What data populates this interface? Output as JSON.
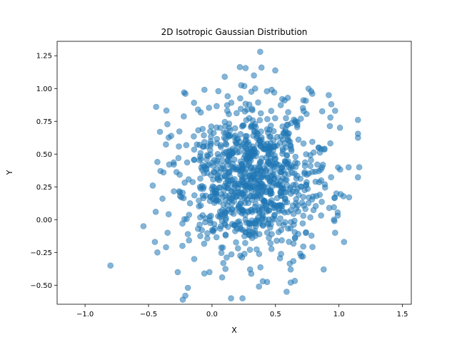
{
  "chart_data": {
    "type": "scatter",
    "title": "2D Isotropic Gaussian Distribution",
    "xlabel": "X",
    "ylabel": "Y",
    "xlim": [
      -1.22,
      1.57
    ],
    "ylim": [
      -0.645,
      1.36
    ],
    "xticks": [
      -1.0,
      -0.5,
      0.0,
      0.5,
      1.0,
      1.5
    ],
    "xtick_labels": [
      "−1.0",
      "−0.5",
      "0.0",
      "0.5",
      "1.0",
      "1.5"
    ],
    "yticks": [
      -0.5,
      -0.25,
      0.0,
      0.25,
      0.5,
      0.75,
      1.0,
      1.25
    ],
    "ytick_labels": [
      "−0.50",
      "−0.25",
      "0.00",
      "0.25",
      "0.50",
      "0.75",
      "1.00",
      "1.25"
    ],
    "grid": false,
    "legend": "none",
    "marker_color": "#1f77b4",
    "marker_alpha": 0.55,
    "distribution": {
      "center": [
        0.32,
        0.31
      ],
      "std": [
        0.29,
        0.29
      ],
      "count": 1000
    },
    "points": [
      [
        -0.8,
        -0.35
      ],
      [
        -0.54,
        -0.05
      ],
      [
        -0.44,
        0.86
      ],
      [
        -0.41,
        0.67
      ],
      [
        -0.22,
        0.97
      ],
      [
        -0.21,
        0.96
      ],
      [
        0.05,
        0.98
      ],
      [
        0.1,
        1.09
      ],
      [
        0.33,
        1.1
      ],
      [
        0.38,
        1.28
      ],
      [
        0.39,
        1.16
      ],
      [
        0.47,
        0.99
      ],
      [
        0.49,
        0.97
      ],
      [
        0.34,
        1.0
      ],
      [
        0.79,
        0.96
      ],
      [
        0.92,
        0.95
      ],
      [
        0.94,
        0.88
      ],
      [
        1.16,
        0.4
      ],
      [
        1.08,
        0.17
      ],
      [
        1.04,
        -0.17
      ],
      [
        0.88,
        -0.38
      ],
      [
        0.62,
        -0.48
      ],
      [
        0.37,
        -0.51
      ],
      [
        0.4,
        -0.47
      ],
      [
        0.24,
        -0.6
      ],
      [
        0.15,
        -0.6
      ],
      [
        0.08,
        -0.44
      ],
      [
        -0.02,
        -0.4
      ],
      [
        -0.06,
        -0.41
      ],
      [
        -0.19,
        -0.52
      ],
      [
        -0.21,
        -0.58
      ],
      [
        -0.23,
        -0.61
      ],
      [
        -0.27,
        -0.4
      ],
      [
        -0.45,
        -0.17
      ],
      [
        -0.43,
        -0.25
      ],
      [
        -0.39,
        0.16
      ],
      [
        -0.43,
        0.44
      ],
      [
        -0.11,
        0.84
      ],
      [
        0.72,
        0.91
      ],
      [
        0.97,
        0.83
      ],
      [
        0.97,
        -0.1
      ],
      [
        0.96,
        0.0
      ],
      [
        0.98,
        0.2
      ],
      [
        0.84,
        0.55
      ],
      [
        0.62,
        -0.38
      ],
      [
        0.3,
        -0.38
      ],
      [
        -0.14,
        -0.3
      ],
      [
        -0.35,
        -0.1
      ],
      [
        0.7,
        0.77
      ],
      [
        0.6,
        0.82
      ]
    ]
  }
}
